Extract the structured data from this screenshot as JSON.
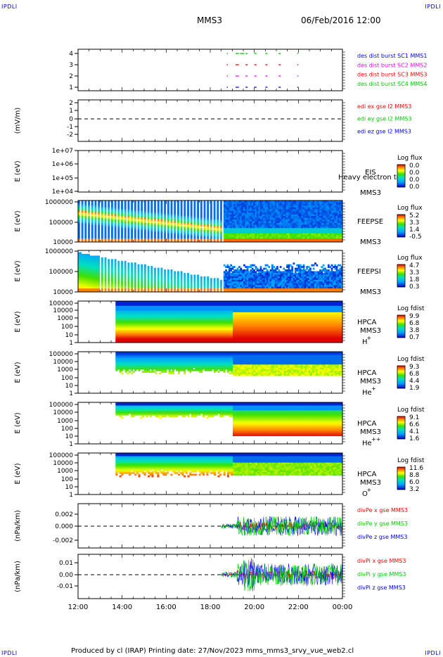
{
  "header": {
    "corner_left_top": "IPDLI",
    "corner_right_top": "IPDLI",
    "corner_left_bottom": "IPDLI",
    "corner_right_bottom": "IPDLI",
    "spacecraft": "MMS3",
    "datetime": "06/Feb/2016 12:00"
  },
  "footer": {
    "text": "Produced by cl (IRAP)   Printing date: 27/Nov/2023   mms_mms3_srvy_vue_web2.cl"
  },
  "colors": {
    "red": "#ff0000",
    "magenta": "#ff00ff",
    "green": "#00cc00",
    "blue": "#0000ff",
    "orange": "#ff8800",
    "yellow": "#ffff00",
    "cyan": "#00e0ff"
  },
  "chart_data": [
    {
      "type": "line",
      "id": "burst",
      "ylabel": "",
      "ylim": [
        0.5,
        4.5
      ],
      "yticks": [
        "1",
        "2",
        "3",
        "4"
      ],
      "series": [
        {
          "name": "des dist burst SC1 MMS1",
          "color": "#0000ff",
          "y": 1
        },
        {
          "name": "des dist burst SC2 MMS2",
          "color": "#ff00ff",
          "y": 2
        },
        {
          "name": "des dist burst SC3 MMS3",
          "color": "#ff0000",
          "y": 3
        },
        {
          "name": "des dist burst SC4 MMS4",
          "color": "#00cc00",
          "y": 4
        }
      ]
    },
    {
      "type": "line",
      "id": "edi",
      "ylabel": "(mV/m)",
      "ylim": [
        -2.5,
        2.5
      ],
      "yticks": [
        "2",
        "1",
        "0",
        "-1",
        "-2"
      ],
      "series": [
        {
          "name": "edi ex gse l2 MMS3",
          "color": "#ff0000"
        },
        {
          "name": "edi ey gse l2 MMS3",
          "color": "#00cc00"
        },
        {
          "name": "edi ez gse l2 MMS3",
          "color": "#0000ff"
        }
      ]
    },
    {
      "type": "heatmap",
      "id": "eis",
      "ylabel": "E (eV)",
      "yticks": [
        "1e+07",
        "1e+06",
        "1e+05",
        "1e+04"
      ],
      "labels": [
        "EIS",
        "MMS3"
      ],
      "overlay_label": "Heavy electron to",
      "colorbar_title": "Log flux",
      "colorbar_values": [
        "0.0",
        "0.0",
        "0.0",
        "0.0"
      ]
    },
    {
      "type": "heatmap",
      "id": "feepse",
      "ylabel": "E (eV)",
      "yticks": [
        "1000000",
        "100000",
        "10000"
      ],
      "labels": [
        "FEEPSE",
        "MMS3"
      ],
      "colorbar_title": "Log flux",
      "colorbar_values": [
        "5.2",
        "3.3",
        "1.4",
        "-0.5"
      ]
    },
    {
      "type": "heatmap",
      "id": "feepsi",
      "ylabel": "E (eV)",
      "yticks": [
        "1000000",
        "100000",
        "10000"
      ],
      "labels": [
        "FEEPSI",
        "MMS3"
      ],
      "colorbar_title": "Log flux",
      "colorbar_values": [
        "4.7",
        "3.3",
        "1.8",
        "0.3"
      ]
    },
    {
      "type": "heatmap",
      "id": "hpca_h",
      "ylabel": "E (eV)",
      "yticks": [
        "100000",
        "10000",
        "1000",
        "100",
        "10",
        "1"
      ],
      "labels": [
        "HPCA",
        "MMS3"
      ],
      "species": "H",
      "species_sup": "+",
      "colorbar_title": "Log fdist",
      "colorbar_values": [
        "9.9",
        "6.8",
        "3.8",
        "0.7"
      ]
    },
    {
      "type": "heatmap",
      "id": "hpca_he",
      "ylabel": "E (eV)",
      "yticks": [
        "100000",
        "10000",
        "1000",
        "100",
        "10",
        "1"
      ],
      "labels": [
        "HPCA",
        "MMS3"
      ],
      "species": "He",
      "species_sup": "+",
      "colorbar_title": "Log fdist",
      "colorbar_values": [
        "9.3",
        "6.8",
        "4.4",
        "1.9"
      ]
    },
    {
      "type": "heatmap",
      "id": "hpca_hepp",
      "ylabel": "E (eV)",
      "yticks": [
        "100000",
        "10000",
        "1000",
        "100",
        "10",
        "1"
      ],
      "labels": [
        "HPCA",
        "MMS3"
      ],
      "species": "He",
      "species_sup": "++",
      "colorbar_title": "Log fdist",
      "colorbar_values": [
        "9.1",
        "6.6",
        "4.1",
        "1.6"
      ]
    },
    {
      "type": "heatmap",
      "id": "hpca_o",
      "ylabel": "E (eV)",
      "yticks": [
        "100000",
        "10000",
        "1000",
        "100",
        "10",
        "1"
      ],
      "labels": [
        "HPCA",
        "MMS3"
      ],
      "species": "O",
      "species_sup": "+",
      "colorbar_title": "Log fdist",
      "colorbar_values": [
        "11.6",
        "8.8",
        "6.0",
        "3.2"
      ]
    },
    {
      "type": "line",
      "id": "divpe",
      "ylabel": "(nPa/km)",
      "ylim": [
        -0.025,
        0.025
      ],
      "yticks": [
        "0.002",
        "0.000",
        "-0.002"
      ],
      "series": [
        {
          "name": "divPe x gse MMS3",
          "color": "#ff0000"
        },
        {
          "name": "divPe y gse MMS3",
          "color": "#00cc00"
        },
        {
          "name": "divPe z gse MMS3",
          "color": "#0000ff"
        }
      ]
    },
    {
      "type": "line",
      "id": "divpi",
      "ylabel": "(nPa/km)",
      "ylim": [
        -0.015,
        0.015
      ],
      "yticks": [
        "0.01",
        "0.00",
        "-0.01"
      ],
      "series": [
        {
          "name": "divPi x gse MMS3",
          "color": "#ff0000"
        },
        {
          "name": "divPi y gse MMS3",
          "color": "#00cc00"
        },
        {
          "name": "divPi z gse MMS3",
          "color": "#0000ff"
        }
      ]
    }
  ],
  "time_axis": {
    "ticks": [
      "12:00",
      "14:00",
      "16:00",
      "18:00",
      "20:00",
      "22:00",
      "00:00"
    ],
    "start_hour": 12,
    "end_hour": 24
  }
}
